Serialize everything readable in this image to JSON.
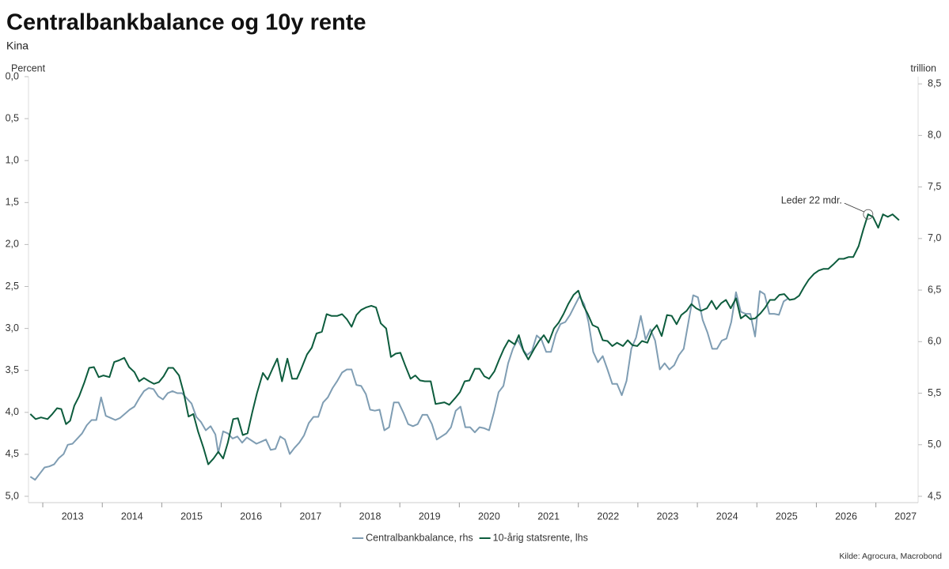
{
  "chart_data": {
    "type": "line",
    "title": "Centralbankbalance og 10y rente",
    "subtitle": "Kina",
    "y_label": "Percent",
    "y2_label": "trillion",
    "annotation": "Leder 22 mdr.",
    "source": "Kilde: Agrocura, Macrobond",
    "xlim": [
      2012.76,
      2027.71
    ],
    "xticks": [
      2013,
      2014,
      2015,
      2016,
      2017,
      2018,
      2019,
      2020,
      2021,
      2022,
      2023,
      2024,
      2025,
      2026,
      2027
    ],
    "ylim": [
      0,
      5
    ],
    "y_inverted": true,
    "yticks": [
      {
        "value": 0,
        "label": "0,0"
      },
      {
        "value": 0.5,
        "label": "0,5"
      },
      {
        "value": 1,
        "label": "1,0"
      },
      {
        "value": 1.5,
        "label": "1,5"
      },
      {
        "value": 2,
        "label": "2,0"
      },
      {
        "value": 2.5,
        "label": "2,5"
      },
      {
        "value": 3,
        "label": "3,0"
      },
      {
        "value": 3.5,
        "label": "3,5"
      },
      {
        "value": 4,
        "label": "4,0"
      },
      {
        "value": 4.5,
        "label": "4,5"
      },
      {
        "value": 5,
        "label": "5,0"
      }
    ],
    "y2lim": [
      4.5,
      8.57
    ],
    "y2ticks": [
      {
        "value": 4.5,
        "label": "4,5"
      },
      {
        "value": 5,
        "label": "5,0"
      },
      {
        "value": 5.5,
        "label": "5,5"
      },
      {
        "value": 6,
        "label": "6,0"
      },
      {
        "value": 6.5,
        "label": "6,5"
      },
      {
        "value": 7,
        "label": "7,0"
      },
      {
        "value": 7.5,
        "label": "7,5"
      },
      {
        "value": 8,
        "label": "8,0"
      },
      {
        "value": 8.5,
        "label": "8,5"
      }
    ],
    "grid": false,
    "series": [
      {
        "name": "Centralbankbalance, rhs",
        "color": "#7f9db3",
        "axis": "y2",
        "x": [
          2012.79,
          2012.87,
          2012.95,
          2013.03,
          2013.11,
          2013.19,
          2013.27,
          2013.35,
          2013.42,
          2013.5,
          2013.58,
          2013.66,
          2013.74,
          2013.82,
          2013.9,
          2013.98,
          2014.06,
          2014.14,
          2014.22,
          2014.3,
          2014.38,
          2014.46,
          2014.54,
          2014.62,
          2014.7,
          2014.78,
          2014.86,
          2014.94,
          2015.02,
          2015.1,
          2015.18,
          2015.26,
          2015.34,
          2015.42,
          2015.5,
          2015.58,
          2015.66,
          2015.74,
          2015.82,
          2015.9,
          2015.95,
          2016.03,
          2016.11,
          2016.19,
          2016.27,
          2016.35,
          2016.43,
          2016.51,
          2016.59,
          2016.67,
          2016.75,
          2016.83,
          2016.91,
          2016.99,
          2017.07,
          2017.15,
          2017.23,
          2017.31,
          2017.39,
          2017.47,
          2017.55,
          2017.63,
          2017.71,
          2017.79,
          2017.87,
          2017.95,
          2018.03,
          2018.11,
          2018.19,
          2018.27,
          2018.35,
          2018.43,
          2018.5,
          2018.58,
          2018.66,
          2018.74,
          2018.82,
          2018.9,
          2018.98,
          2019.06,
          2019.14,
          2019.22,
          2019.3,
          2019.38,
          2019.46,
          2019.54,
          2019.62,
          2019.7,
          2019.78,
          2019.86,
          2019.94,
          2020.02,
          2020.1,
          2020.18,
          2020.26,
          2020.34,
          2020.42,
          2020.5,
          2020.58,
          2020.66,
          2020.74,
          2020.82,
          2020.9,
          2020.98,
          2021.06,
          2021.14,
          2021.22,
          2021.3,
          2021.38,
          2021.46,
          2021.54,
          2021.62,
          2021.7,
          2021.78,
          2021.86,
          2021.94,
          2022.02,
          2022.1,
          2022.17,
          2022.25,
          2022.33,
          2022.41,
          2022.49,
          2022.57,
          2022.65,
          2022.73,
          2022.81,
          2022.89,
          2022.97,
          2023.05,
          2023.13,
          2023.21,
          2023.29,
          2023.37,
          2023.45,
          2023.53,
          2023.61,
          2023.69,
          2023.77,
          2023.85,
          2023.93,
          2024.01,
          2024.09,
          2024.17,
          2024.25,
          2024.33,
          2024.41,
          2024.49,
          2024.57,
          2024.65,
          2024.73,
          2024.81,
          2024.89,
          2024.97,
          2025.05,
          2025.13,
          2025.21,
          2025.29,
          2025.37,
          2025.45,
          2025.53
        ],
        "values": [
          4.69,
          4.66,
          4.72,
          4.78,
          4.79,
          4.81,
          4.87,
          4.91,
          5.0,
          5.01,
          5.06,
          5.11,
          5.19,
          5.24,
          5.24,
          5.46,
          5.28,
          5.26,
          5.24,
          5.26,
          5.3,
          5.34,
          5.37,
          5.45,
          5.52,
          5.55,
          5.54,
          5.47,
          5.44,
          5.5,
          5.52,
          5.5,
          5.5,
          5.45,
          5.4,
          5.27,
          5.22,
          5.14,
          5.18,
          5.1,
          4.92,
          5.13,
          5.11,
          5.06,
          5.08,
          5.02,
          5.07,
          5.04,
          5.01,
          5.03,
          5.05,
          4.95,
          4.96,
          5.08,
          5.05,
          4.91,
          4.97,
          5.02,
          5.09,
          5.21,
          5.27,
          5.27,
          5.41,
          5.46,
          5.55,
          5.62,
          5.7,
          5.73,
          5.73,
          5.58,
          5.57,
          5.49,
          5.34,
          5.33,
          5.34,
          5.14,
          5.17,
          5.41,
          5.41,
          5.31,
          5.2,
          5.18,
          5.2,
          5.29,
          5.29,
          5.2,
          5.05,
          5.08,
          5.11,
          5.17,
          5.33,
          5.37,
          5.17,
          5.17,
          5.12,
          5.17,
          5.16,
          5.14,
          5.31,
          5.51,
          5.57,
          5.79,
          5.93,
          6.02,
          5.93,
          5.87,
          5.91,
          6.06,
          6.02,
          5.9,
          5.9,
          6.07,
          6.17,
          6.19,
          6.26,
          6.35,
          6.44,
          6.36,
          6.19,
          5.9,
          5.8,
          5.86,
          5.73,
          5.59,
          5.59,
          5.48,
          5.62,
          5.93,
          6.04,
          6.25,
          6.02,
          6.12,
          6.01,
          5.73,
          5.79,
          5.73,
          5.77,
          5.87,
          5.93,
          6.19,
          6.45,
          6.43,
          6.21,
          6.09,
          5.93,
          5.93,
          6.01,
          6.03,
          6.19,
          6.48,
          6.29,
          6.27,
          6.27,
          6.05,
          6.49,
          6.46,
          6.27,
          6.27,
          6.26,
          6.39,
          6.42
        ]
      },
      {
        "name": "10-årig statsrente, lhs",
        "color": "#0d5c3d",
        "axis": "y",
        "x": [
          2012.79,
          2012.88,
          2012.97,
          2013.08,
          2013.16,
          2013.24,
          2013.31,
          2013.39,
          2013.46,
          2013.53,
          2013.61,
          2013.7,
          2013.78,
          2013.86,
          2013.94,
          2014.02,
          2014.12,
          2014.2,
          2014.28,
          2014.37,
          2014.45,
          2014.54,
          2014.62,
          2014.7,
          2014.79,
          2014.87,
          2014.95,
          2015.03,
          2015.11,
          2015.19,
          2015.29,
          2015.37,
          2015.45,
          2015.53,
          2015.61,
          2015.7,
          2015.78,
          2015.87,
          2015.95,
          2016.03,
          2016.11,
          2016.2,
          2016.28,
          2016.36,
          2016.44,
          2016.52,
          2016.6,
          2016.7,
          2016.78,
          2016.86,
          2016.94,
          2017.02,
          2017.11,
          2017.19,
          2017.27,
          2017.35,
          2017.44,
          2017.52,
          2017.6,
          2017.69,
          2017.77,
          2017.85,
          2017.95,
          2018.03,
          2018.11,
          2018.19,
          2018.27,
          2018.35,
          2018.43,
          2018.52,
          2018.6,
          2018.68,
          2018.77,
          2018.85,
          2018.93,
          2019.01,
          2019.09,
          2019.18,
          2019.26,
          2019.34,
          2019.42,
          2019.52,
          2019.6,
          2019.68,
          2019.75,
          2019.83,
          2019.93,
          2020.01,
          2020.09,
          2020.17,
          2020.26,
          2020.34,
          2020.42,
          2020.5,
          2020.59,
          2020.67,
          2020.75,
          2020.83,
          2020.93,
          2021.0,
          2021.08,
          2021.16,
          2021.26,
          2021.34,
          2021.42,
          2021.5,
          2021.59,
          2021.67,
          2021.75,
          2021.83,
          2021.92,
          2022.0,
          2022.08,
          2022.16,
          2022.24,
          2022.33,
          2022.41,
          2022.49,
          2022.57,
          2022.65,
          2022.75,
          2022.83,
          2022.91,
          2022.99,
          2023.07,
          2023.16,
          2023.24,
          2023.32,
          2023.4,
          2023.49,
          2023.57,
          2023.65,
          2023.73,
          2023.82,
          2023.9,
          2023.98,
          2024.06,
          2024.16,
          2024.24,
          2024.32,
          2024.4,
          2024.48,
          2024.56,
          2024.65,
          2024.73,
          2024.81,
          2024.89,
          2024.97,
          2025.06,
          2025.14,
          2025.22,
          2025.3,
          2025.38,
          2025.46,
          2025.55,
          2025.63,
          2025.71,
          2025.79,
          2025.87,
          2025.96,
          2026.04,
          2026.12,
          2026.2,
          2026.28,
          2026.38,
          2026.46,
          2026.54,
          2026.62,
          2026.71,
          2026.79,
          2026.87,
          2026.95,
          2027.04,
          2027.12,
          2027.2,
          2027.28,
          2027.39
        ],
        "values": [
          4.02,
          4.08,
          4.06,
          4.08,
          4.02,
          3.95,
          3.96,
          4.14,
          4.1,
          3.92,
          3.81,
          3.64,
          3.47,
          3.46,
          3.58,
          3.56,
          3.58,
          3.4,
          3.38,
          3.35,
          3.46,
          3.52,
          3.63,
          3.59,
          3.63,
          3.66,
          3.64,
          3.57,
          3.47,
          3.47,
          3.56,
          3.77,
          4.05,
          4.02,
          4.23,
          4.42,
          4.62,
          4.55,
          4.47,
          4.55,
          4.36,
          4.08,
          4.07,
          4.27,
          4.25,
          4.0,
          3.77,
          3.53,
          3.61,
          3.48,
          3.36,
          3.63,
          3.36,
          3.6,
          3.6,
          3.47,
          3.31,
          3.23,
          3.06,
          3.04,
          2.83,
          2.85,
          2.85,
          2.83,
          2.89,
          2.98,
          2.84,
          2.78,
          2.75,
          2.73,
          2.75,
          2.94,
          3.0,
          3.34,
          3.3,
          3.29,
          3.44,
          3.6,
          3.56,
          3.62,
          3.63,
          3.63,
          3.9,
          3.89,
          3.88,
          3.91,
          3.83,
          3.76,
          3.63,
          3.62,
          3.48,
          3.48,
          3.57,
          3.6,
          3.51,
          3.37,
          3.24,
          3.14,
          3.19,
          3.08,
          3.27,
          3.37,
          3.24,
          3.15,
          3.08,
          3.17,
          3.0,
          2.93,
          2.83,
          2.71,
          2.6,
          2.55,
          2.72,
          2.83,
          2.96,
          2.99,
          3.14,
          3.15,
          3.21,
          3.17,
          3.21,
          3.14,
          3.2,
          3.21,
          3.15,
          3.17,
          3.03,
          2.96,
          3.09,
          2.84,
          2.85,
          2.95,
          2.84,
          2.79,
          2.71,
          2.76,
          2.79,
          2.76,
          2.67,
          2.77,
          2.7,
          2.66,
          2.76,
          2.64,
          2.88,
          2.84,
          2.89,
          2.88,
          2.82,
          2.75,
          2.66,
          2.66,
          2.6,
          2.59,
          2.66,
          2.65,
          2.61,
          2.51,
          2.42,
          2.35,
          2.31,
          2.29,
          2.29,
          2.24,
          2.17,
          2.17,
          2.15,
          2.15,
          2.02,
          1.82,
          1.64,
          1.67,
          1.8,
          1.64,
          1.67,
          1.64,
          1.71
        ]
      }
    ]
  }
}
